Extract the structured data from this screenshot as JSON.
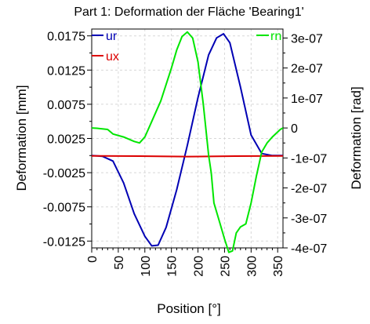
{
  "chart_data": {
    "type": "line",
    "title": "Part 1: Deformation der Fläche 'Bearing1'",
    "xlabel": "Position [°]",
    "ylabel_left": "Deformation [mm]",
    "ylabel_right": "Deformation [rad]",
    "xlim": [
      0,
      360
    ],
    "ylim_left": [
      -0.0135,
      0.0185
    ],
    "ylim_right": [
      -4e-07,
      3.3e-07
    ],
    "x_ticks": [
      "0",
      "50",
      "100",
      "150",
      "200",
      "250",
      "300",
      "350"
    ],
    "y_left_ticks": [
      "0.0175",
      "0.0125",
      "0.0075",
      "0.0025",
      "-0.0025",
      "-0.0075",
      "-0.0125"
    ],
    "y_right_ticks": [
      "3e-07",
      "2e-07",
      "1e-07",
      "0",
      "-1e-07",
      "-2e-07",
      "-3e-07",
      "-4e-07"
    ],
    "grid": true,
    "legend": "top",
    "series": [
      {
        "name": "ur",
        "axis": "left",
        "color": "#0000b4",
        "x": [
          0,
          20,
          40,
          60,
          80,
          100,
          113,
          125,
          140,
          160,
          180,
          200,
          220,
          235,
          248,
          260,
          280,
          300,
          320,
          340,
          360
        ],
        "y": [
          0.0,
          -0.0001,
          -0.0008,
          -0.004,
          -0.0085,
          -0.0118,
          -0.0132,
          -0.0131,
          -0.0105,
          -0.005,
          0.0015,
          0.0085,
          0.0147,
          0.0172,
          0.0178,
          0.0165,
          0.01,
          0.003,
          0.0003,
          0.0,
          0.0
        ]
      },
      {
        "name": "ux",
        "axis": "left",
        "color": "#dc0000",
        "x": [
          0,
          90,
          180,
          270,
          360
        ],
        "y": [
          -5e-05,
          -8e-05,
          -0.00015,
          -8e-05,
          -5e-05
        ]
      },
      {
        "name": "rn",
        "axis": "right",
        "color": "#00e600",
        "x": [
          0,
          10,
          30,
          40,
          60,
          80,
          90,
          100,
          110,
          130,
          150,
          160,
          170,
          180,
          190,
          200,
          210,
          220,
          225,
          230,
          240,
          250,
          258,
          265,
          272,
          280,
          290,
          300,
          310,
          320,
          330,
          340,
          355,
          360
        ],
        "y": [
          0.0,
          -1e-09,
          -5e-09,
          -2e-08,
          -3e-08,
          -4.5e-08,
          -5e-08,
          -3e-08,
          1e-08,
          9e-08,
          2e-07,
          2.6e-07,
          3.05e-07,
          3.2e-07,
          3e-07,
          2.2e-07,
          8e-08,
          -9e-08,
          -1.5e-07,
          -2.5e-07,
          -3.1e-07,
          -3.7e-07,
          -4.15e-07,
          -4.1e-07,
          -3.5e-07,
          -3.3e-07,
          -3.2e-07,
          -2.5e-07,
          -1.6e-07,
          -8e-08,
          -5e-08,
          -3e-08,
          -5e-09,
          0.0
        ]
      }
    ]
  }
}
